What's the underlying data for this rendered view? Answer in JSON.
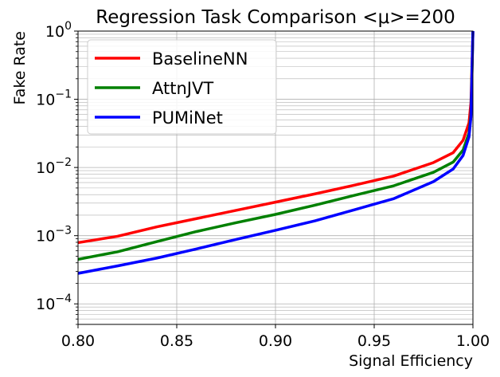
{
  "chart_data": {
    "type": "line",
    "title": "Regression Task Comparison <μ>=200",
    "xlabel": "Signal Efficiency",
    "ylabel": "Fake Rate",
    "xlim": [
      0.8,
      1.0
    ],
    "ylim": [
      5e-05,
      1.0
    ],
    "yscale": "log",
    "grid": true,
    "legend_position": "top-left",
    "x_ticks": [
      {
        "value": 0.8,
        "label": "0.80"
      },
      {
        "value": 0.85,
        "label": "0.85"
      },
      {
        "value": 0.9,
        "label": "0.90"
      },
      {
        "value": 0.95,
        "label": "0.95"
      },
      {
        "value": 1.0,
        "label": "1.00"
      }
    ],
    "y_ticks": [
      {
        "value": 0.0001,
        "base": "10",
        "exp": "−4"
      },
      {
        "value": 0.001,
        "base": "10",
        "exp": "−3"
      },
      {
        "value": 0.01,
        "base": "10",
        "exp": "−2"
      },
      {
        "value": 0.1,
        "base": "10",
        "exp": "−1"
      },
      {
        "value": 1.0,
        "base": "10",
        "exp": "0"
      }
    ],
    "series": [
      {
        "name": "BaselineNN",
        "color": "#ff0000",
        "x": [
          0.8,
          0.82,
          0.84,
          0.86,
          0.88,
          0.9,
          0.92,
          0.94,
          0.96,
          0.98,
          0.99,
          0.995,
          0.998,
          0.999,
          1.0
        ],
        "y": [
          0.00079,
          0.00098,
          0.00135,
          0.00178,
          0.00235,
          0.0031,
          0.0041,
          0.0055,
          0.0075,
          0.0118,
          0.0165,
          0.025,
          0.045,
          0.09,
          1.0
        ]
      },
      {
        "name": "AttnJVT",
        "color": "#008000",
        "x": [
          0.8,
          0.82,
          0.84,
          0.86,
          0.88,
          0.9,
          0.92,
          0.94,
          0.96,
          0.98,
          0.99,
          0.995,
          0.998,
          0.999,
          1.0
        ],
        "y": [
          0.00045,
          0.00058,
          0.00082,
          0.00115,
          0.00155,
          0.00205,
          0.0028,
          0.0039,
          0.0054,
          0.0085,
          0.012,
          0.018,
          0.032,
          0.06,
          1.0
        ]
      },
      {
        "name": "PUMiNet",
        "color": "#0000ff",
        "x": [
          0.8,
          0.82,
          0.84,
          0.86,
          0.88,
          0.9,
          0.92,
          0.94,
          0.96,
          0.98,
          0.99,
          0.995,
          0.998,
          0.999,
          1.0
        ],
        "y": [
          0.00028,
          0.00036,
          0.00047,
          0.00064,
          0.00088,
          0.0012,
          0.00165,
          0.0024,
          0.0035,
          0.0062,
          0.0095,
          0.015,
          0.028,
          0.055,
          1.0
        ]
      }
    ]
  }
}
